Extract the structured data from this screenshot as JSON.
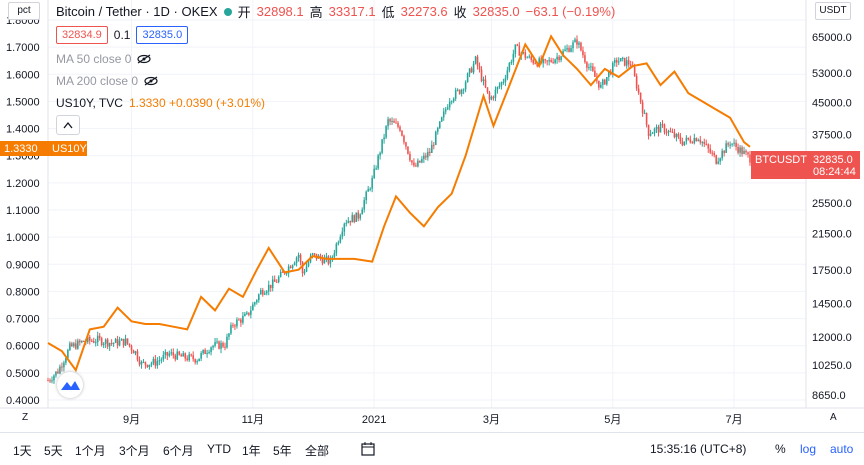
{
  "header": {
    "symbol": "Bitcoin / Tether · 1D · OKEX",
    "open_label": "开",
    "open": "32898.1",
    "high_label": "高",
    "high": "33317.1",
    "low_label": "低",
    "low": "32273.6",
    "close_label": "收",
    "close": "32835.0",
    "change": "−63.1 (−0.19%)",
    "bid": "32834.9",
    "spread": "0.1",
    "ask": "32835.0"
  },
  "indicators": [
    {
      "label": "MA 50 close 0"
    },
    {
      "label": "MA 200 close 0"
    }
  ],
  "compare": {
    "label": "US10Y, TVC",
    "value": "1.3330 +0.0390 (+3.01%)"
  },
  "scale_left_label": "pct",
  "scale_right_label": "USDT",
  "left_marker": {
    "value": "1.3330",
    "tag": "US10Y"
  },
  "right_marker": {
    "tag": "BTCUSDT",
    "price": "32835.0",
    "countdown": "08:24:44"
  },
  "left_ticks": [
    "1.8000",
    "1.7000",
    "1.6000",
    "1.5000",
    "1.4000",
    "1.3000",
    "1.2000",
    "1.1000",
    "1.0000",
    "0.9000",
    "0.8000",
    "0.7000",
    "0.6000",
    "0.5000",
    "0.4000"
  ],
  "right_ticks": [
    "65000.0",
    "53000.0",
    "45000.0",
    "37500.0",
    "30500.0",
    "25500.0",
    "21500.0",
    "17500.0",
    "14500.0",
    "12000.0",
    "10250.0",
    "8650.0"
  ],
  "x_ticks": [
    "9月",
    "11月",
    "2021",
    "3月",
    "5月",
    "7月"
  ],
  "timeframes": [
    "1天",
    "5天",
    "1个月",
    "3个月",
    "6个月",
    "YTD",
    "1年",
    "5年",
    "全部"
  ],
  "toolbar_right": {
    "time": "15:35:16 (UTC+8)",
    "pct": "%",
    "log": "log",
    "auto": "auto"
  },
  "tz_button": "Z",
  "auto_button": "A",
  "colors": {
    "up": "#26a69a",
    "down": "#ef5350",
    "compare": "#f57c00",
    "accent": "#2962ff"
  },
  "chart_data": {
    "type": "line",
    "title": "Bitcoin / Tether · 1D · OKEX",
    "x_range": [
      "2020-07-21",
      "2021-07-09"
    ],
    "y_left": {
      "label": "pct",
      "range": [
        0.4,
        1.8
      ]
    },
    "y_right": {
      "label": "USDT",
      "scale": "log",
      "range": [
        8000,
        70000
      ]
    },
    "series": [
      {
        "name": "BTCUSDT",
        "axis": "right",
        "style": "candles",
        "points": [
          [
            "2020-07-21",
            9400
          ],
          [
            "2020-07-26",
            9900
          ],
          [
            "2020-08-01",
            11300
          ],
          [
            "2020-08-08",
            11700
          ],
          [
            "2020-08-15",
            11800
          ],
          [
            "2020-08-22",
            11600
          ],
          [
            "2020-08-29",
            11700
          ],
          [
            "2020-09-03",
            11000
          ],
          [
            "2020-09-06",
            10300
          ],
          [
            "2020-09-13",
            10400
          ],
          [
            "2020-09-20",
            10900
          ],
          [
            "2020-09-27",
            10700
          ],
          [
            "2020-10-04",
            10600
          ],
          [
            "2020-10-11",
            11400
          ],
          [
            "2020-10-18",
            11500
          ],
          [
            "2020-10-22",
            12900
          ],
          [
            "2020-10-29",
            13500
          ],
          [
            "2020-11-05",
            15500
          ],
          [
            "2020-11-12",
            16300
          ],
          [
            "2020-11-19",
            17800
          ],
          [
            "2020-11-24",
            19100
          ],
          [
            "2020-11-26",
            17200
          ],
          [
            "2020-12-01",
            19000
          ],
          [
            "2020-12-10",
            18300
          ],
          [
            "2020-12-17",
            23000
          ],
          [
            "2020-12-24",
            23700
          ],
          [
            "2020-12-31",
            29000
          ],
          [
            "2021-01-08",
            40500
          ],
          [
            "2021-01-14",
            39000
          ],
          [
            "2021-01-21",
            31000
          ],
          [
            "2021-01-29",
            34000
          ],
          [
            "2021-02-08",
            46000
          ],
          [
            "2021-02-14",
            48500
          ],
          [
            "2021-02-21",
            57000
          ],
          [
            "2021-02-28",
            45500
          ],
          [
            "2021-03-07",
            51000
          ],
          [
            "2021-03-13",
            61000
          ],
          [
            "2021-03-21",
            57000
          ],
          [
            "2021-03-28",
            55800
          ],
          [
            "2021-04-04",
            58500
          ],
          [
            "2021-04-13",
            63500
          ],
          [
            "2021-04-18",
            56000
          ],
          [
            "2021-04-25",
            49000
          ],
          [
            "2021-05-03",
            57000
          ],
          [
            "2021-05-10",
            56000
          ],
          [
            "2021-05-13",
            49500
          ],
          [
            "2021-05-19",
            38000
          ],
          [
            "2021-05-26",
            39000
          ],
          [
            "2021-06-05",
            36000
          ],
          [
            "2021-06-13",
            37000
          ],
          [
            "2021-06-22",
            32500
          ],
          [
            "2021-06-29",
            36000
          ],
          [
            "2021-07-09",
            32835
          ]
        ]
      },
      {
        "name": "US10Y",
        "axis": "left",
        "style": "line",
        "points": [
          [
            "2020-07-21",
            0.61
          ],
          [
            "2020-07-28",
            0.58
          ],
          [
            "2020-08-04",
            0.51
          ],
          [
            "2020-08-11",
            0.66
          ],
          [
            "2020-08-18",
            0.67
          ],
          [
            "2020-08-25",
            0.74
          ],
          [
            "2020-09-01",
            0.69
          ],
          [
            "2020-09-08",
            0.68
          ],
          [
            "2020-09-15",
            0.68
          ],
          [
            "2020-09-22",
            0.67
          ],
          [
            "2020-09-29",
            0.66
          ],
          [
            "2020-10-06",
            0.78
          ],
          [
            "2020-10-13",
            0.73
          ],
          [
            "2020-10-20",
            0.81
          ],
          [
            "2020-10-27",
            0.78
          ],
          [
            "2020-11-03",
            0.88
          ],
          [
            "2020-11-09",
            0.96
          ],
          [
            "2020-11-17",
            0.87
          ],
          [
            "2020-11-24",
            0.88
          ],
          [
            "2020-12-01",
            0.93
          ],
          [
            "2020-12-08",
            0.92
          ],
          [
            "2020-12-15",
            0.92
          ],
          [
            "2020-12-22",
            0.92
          ],
          [
            "2020-12-31",
            0.91
          ],
          [
            "2021-01-06",
            1.04
          ],
          [
            "2021-01-12",
            1.15
          ],
          [
            "2021-01-19",
            1.09
          ],
          [
            "2021-01-26",
            1.04
          ],
          [
            "2021-02-02",
            1.11
          ],
          [
            "2021-02-09",
            1.16
          ],
          [
            "2021-02-16",
            1.3
          ],
          [
            "2021-02-25",
            1.52
          ],
          [
            "2021-03-02",
            1.41
          ],
          [
            "2021-03-09",
            1.54
          ],
          [
            "2021-03-18",
            1.71
          ],
          [
            "2021-03-25",
            1.63
          ],
          [
            "2021-03-31",
            1.74
          ],
          [
            "2021-04-06",
            1.67
          ],
          [
            "2021-04-13",
            1.62
          ],
          [
            "2021-04-20",
            1.56
          ],
          [
            "2021-04-27",
            1.62
          ],
          [
            "2021-05-04",
            1.59
          ],
          [
            "2021-05-11",
            1.63
          ],
          [
            "2021-05-18",
            1.64
          ],
          [
            "2021-05-25",
            1.56
          ],
          [
            "2021-06-01",
            1.61
          ],
          [
            "2021-06-08",
            1.53
          ],
          [
            "2021-06-15",
            1.5
          ],
          [
            "2021-06-22",
            1.47
          ],
          [
            "2021-06-29",
            1.44
          ],
          [
            "2021-07-06",
            1.35
          ],
          [
            "2021-07-09",
            1.333
          ]
        ]
      }
    ],
    "legend": "top-left",
    "grid": true
  }
}
